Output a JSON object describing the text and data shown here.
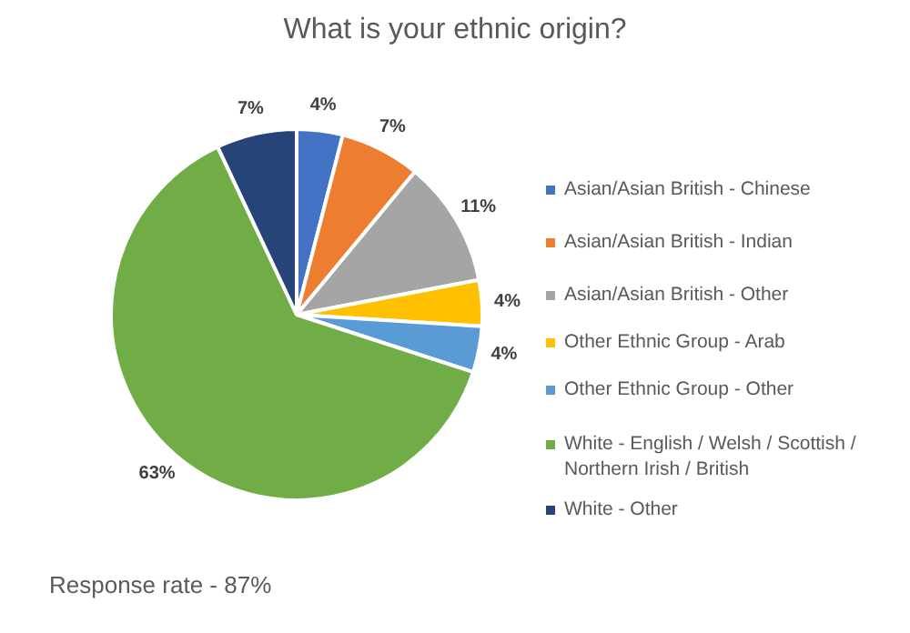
{
  "chart_data": {
    "type": "pie",
    "title": "What is your ethnic origin?",
    "categories": [
      "Asian/Asian British - Chinese",
      "Asian/Asian British - Indian",
      "Asian/Asian British - Other",
      "Other Ethnic Group - Arab",
      "Other Ethnic Group - Other",
      "White - English / Welsh / Scottish / Northern Irish / British",
      "White - Other"
    ],
    "values": [
      4,
      7,
      11,
      4,
      4,
      63,
      7
    ],
    "value_labels": [
      "4%",
      "7%",
      "11%",
      "4%",
      "4%",
      "63%",
      "7%"
    ],
    "colors": [
      "#4472c4",
      "#ed7d31",
      "#a5a5a5",
      "#ffc000",
      "#5b9bd5",
      "#70ad47",
      "#264478"
    ],
    "legend": "right",
    "annotations": [
      "Response rate - 87%"
    ]
  }
}
